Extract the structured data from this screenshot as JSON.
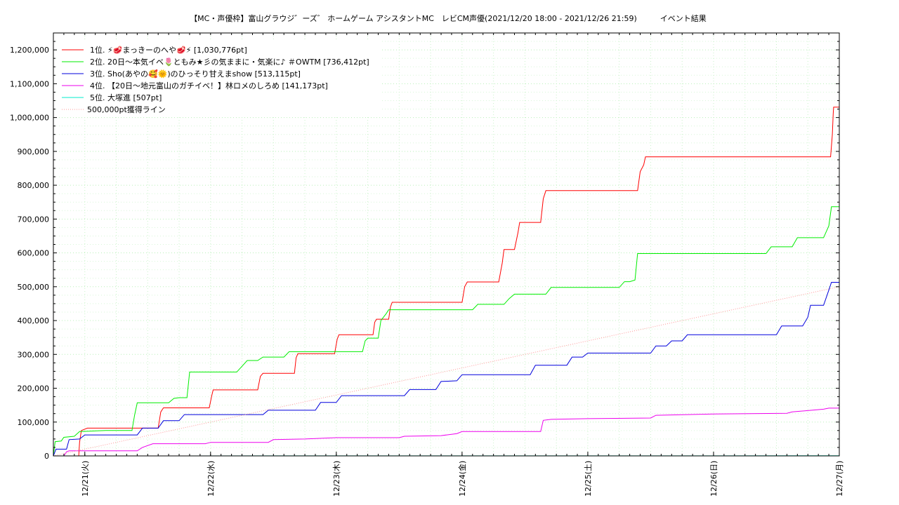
{
  "chart_data": {
    "type": "line",
    "title": "【MC・声優枠】富山グラウジ゛ーズ゛ ホームゲーム アシスタントMC　レビCM声優(2021/12/20 18:00 - 2021/12/26 21:59)　　　イベント結果",
    "xlabel": "",
    "ylabel": "",
    "x_range": [
      "2021-12-20 18:00",
      "2021-12-27 00:00"
    ],
    "ylim": [
      0,
      1250000
    ],
    "y_ticks": [
      0,
      100000,
      200000,
      300000,
      400000,
      500000,
      600000,
      700000,
      800000,
      900000,
      1000000,
      1100000,
      1200000
    ],
    "y_tick_labels": [
      "0",
      "100,000",
      "200,000",
      "300,000",
      "400,000",
      "500,000",
      "600,000",
      "700,000",
      "800,000",
      "900,000",
      "1,000,000",
      "1,100,000",
      "1,200,000"
    ],
    "x_ticks": [
      "2021-12-21 00:00",
      "2021-12-22 00:00",
      "2021-12-23 00:00",
      "2021-12-24 00:00",
      "2021-12-25 00:00",
      "2021-12-26 00:00",
      "2021-12-27 00:00"
    ],
    "x_tick_labels": [
      "12/21(火)",
      "12/22(水)",
      "12/23(木)",
      "12/24(金)",
      "12/25(土)",
      "12/26(日)",
      "12/27(月)"
    ],
    "grid": true,
    "legend_position": "top-left",
    "series": [
      {
        "name": "1位. ⚡🥩まっきーのへや🥩⚡ [1,030,776pt]",
        "color": "#ff0000",
        "style": "solid",
        "points": [
          [
            "2021-12-20 18:00",
            0
          ],
          [
            "2021-12-20 20:30",
            0
          ],
          [
            "2021-12-20 22:50",
            0
          ],
          [
            "2021-12-20 23:00",
            40000
          ],
          [
            "2021-12-20 23:20",
            75000
          ],
          [
            "2021-12-21 00:30",
            82000
          ],
          [
            "2021-12-21 14:00",
            82000
          ],
          [
            "2021-12-21 14:30",
            130000
          ],
          [
            "2021-12-21 15:00",
            142000
          ],
          [
            "2021-12-21 23:45",
            142000
          ],
          [
            "2021-12-22 00:15",
            180000
          ],
          [
            "2021-12-22 00:30",
            195000
          ],
          [
            "2021-12-22 09:00",
            195000
          ],
          [
            "2021-12-22 09:30",
            235000
          ],
          [
            "2021-12-22 10:00",
            244000
          ],
          [
            "2021-12-22 16:00",
            244000
          ],
          [
            "2021-12-22 16:20",
            290000
          ],
          [
            "2021-12-22 16:40",
            302000
          ],
          [
            "2021-12-22 23:40",
            302000
          ],
          [
            "2021-12-23 00:10",
            345000
          ],
          [
            "2021-12-23 00:30",
            358000
          ],
          [
            "2021-12-23 07:00",
            358000
          ],
          [
            "2021-12-23 07:20",
            395000
          ],
          [
            "2021-12-23 07:40",
            404000
          ],
          [
            "2021-12-23 10:00",
            404000
          ],
          [
            "2021-12-23 10:20",
            440000
          ],
          [
            "2021-12-23 10:40",
            454000
          ],
          [
            "2021-12-24 00:00",
            454000
          ],
          [
            "2021-12-24 00:30",
            500000
          ],
          [
            "2021-12-24 01:00",
            514000
          ],
          [
            "2021-12-24 07:00",
            514000
          ],
          [
            "2021-12-24 07:40",
            570000
          ],
          [
            "2021-12-24 08:00",
            610000
          ],
          [
            "2021-12-24 10:00",
            610000
          ],
          [
            "2021-12-24 10:40",
            660000
          ],
          [
            "2021-12-24 11:00",
            690000
          ],
          [
            "2021-12-24 15:00",
            690000
          ],
          [
            "2021-12-24 15:30",
            760000
          ],
          [
            "2021-12-24 16:00",
            784000
          ],
          [
            "2021-12-25 09:30",
            784000
          ],
          [
            "2021-12-25 10:00",
            840000
          ],
          [
            "2021-12-25 10:40",
            860000
          ],
          [
            "2021-12-25 11:00",
            884000
          ],
          [
            "2021-12-26 22:20",
            884000
          ],
          [
            "2021-12-26 22:40",
            950000
          ],
          [
            "2021-12-26 22:50",
            1010000
          ],
          [
            "2021-12-26 22:55",
            1030776
          ],
          [
            "2021-12-27 00:00",
            1030776
          ]
        ]
      },
      {
        "name": "2位. 20日〜本気イベ🌷ともみ★彡の気ままに・気楽に♪ ＃OWTM [736,412pt]",
        "color": "#00ee00",
        "style": "solid",
        "points": [
          [
            "2021-12-20 18:00",
            0
          ],
          [
            "2021-12-20 18:20",
            42000
          ],
          [
            "2021-12-20 19:30",
            44000
          ],
          [
            "2021-12-20 20:00",
            55000
          ],
          [
            "2021-12-20 22:00",
            58000
          ],
          [
            "2021-12-20 23:00",
            72000
          ],
          [
            "2021-12-21 04:00",
            75000
          ],
          [
            "2021-12-21 09:00",
            75000
          ],
          [
            "2021-12-21 09:30",
            120000
          ],
          [
            "2021-12-21 10:00",
            157000
          ],
          [
            "2021-12-21 16:00",
            157000
          ],
          [
            "2021-12-21 17:00",
            170000
          ],
          [
            "2021-12-21 18:00",
            172000
          ],
          [
            "2021-12-21 19:30",
            172000
          ],
          [
            "2021-12-21 20:00",
            248000
          ],
          [
            "2021-12-22 05:00",
            248000
          ],
          [
            "2021-12-22 06:00",
            265000
          ],
          [
            "2021-12-22 07:00",
            282000
          ],
          [
            "2021-12-22 09:00",
            282000
          ],
          [
            "2021-12-22 10:00",
            292000
          ],
          [
            "2021-12-22 14:00",
            292000
          ],
          [
            "2021-12-22 15:00",
            308000
          ],
          [
            "2021-12-23 05:00",
            308000
          ],
          [
            "2021-12-23 05:30",
            340000
          ],
          [
            "2021-12-23 06:00",
            348000
          ],
          [
            "2021-12-23 08:00",
            348000
          ],
          [
            "2021-12-23 08:30",
            400000
          ],
          [
            "2021-12-23 09:00",
            410000
          ],
          [
            "2021-12-23 09:30",
            420000
          ],
          [
            "2021-12-23 10:00",
            432000
          ],
          [
            "2021-12-24 02:00",
            432000
          ],
          [
            "2021-12-24 03:00",
            448000
          ],
          [
            "2021-12-24 08:00",
            448000
          ],
          [
            "2021-12-24 09:00",
            465000
          ],
          [
            "2021-12-24 10:00",
            478000
          ],
          [
            "2021-12-24 16:00",
            478000
          ],
          [
            "2021-12-24 17:00",
            498000
          ],
          [
            "2021-12-25 06:00",
            498000
          ],
          [
            "2021-12-25 07:00",
            515000
          ],
          [
            "2021-12-25 08:00",
            515000
          ],
          [
            "2021-12-25 09:00",
            520000
          ],
          [
            "2021-12-25 09:30",
            598000
          ],
          [
            "2021-12-26 10:00",
            598000
          ],
          [
            "2021-12-26 11:00",
            618000
          ],
          [
            "2021-12-26 15:00",
            618000
          ],
          [
            "2021-12-26 16:00",
            645000
          ],
          [
            "2021-12-26 21:00",
            645000
          ],
          [
            "2021-12-26 22:00",
            680000
          ],
          [
            "2021-12-26 22:30",
            736412
          ],
          [
            "2021-12-27 00:00",
            736412
          ]
        ]
      },
      {
        "name": "3位. Sho(あやの🥰🌞)のひっそり甘えまshow [513,115pt]",
        "color": "#0000dd",
        "style": "solid",
        "points": [
          [
            "2021-12-20 18:00",
            0
          ],
          [
            "2021-12-20 18:30",
            20000
          ],
          [
            "2021-12-20 20:30",
            20000
          ],
          [
            "2021-12-20 21:00",
            48000
          ],
          [
            "2021-12-20 23:00",
            50000
          ],
          [
            "2021-12-21 00:00",
            62000
          ],
          [
            "2021-12-21 10:00",
            62000
          ],
          [
            "2021-12-21 11:00",
            82000
          ],
          [
            "2021-12-21 14:00",
            82000
          ],
          [
            "2021-12-21 15:00",
            104000
          ],
          [
            "2021-12-21 18:00",
            104000
          ],
          [
            "2021-12-21 19:00",
            122000
          ],
          [
            "2021-12-22 10:00",
            122000
          ],
          [
            "2021-12-22 11:00",
            135000
          ],
          [
            "2021-12-22 20:00",
            135000
          ],
          [
            "2021-12-22 21:00",
            158000
          ],
          [
            "2021-12-23 00:00",
            158000
          ],
          [
            "2021-12-23 01:00",
            178000
          ],
          [
            "2021-12-23 13:00",
            178000
          ],
          [
            "2021-12-23 14:00",
            196000
          ],
          [
            "2021-12-23 19:00",
            196000
          ],
          [
            "2021-12-23 20:00",
            220000
          ],
          [
            "2021-12-23 23:00",
            222000
          ],
          [
            "2021-12-24 00:00",
            240000
          ],
          [
            "2021-12-24 13:00",
            240000
          ],
          [
            "2021-12-24 14:00",
            268000
          ],
          [
            "2021-12-24 20:00",
            268000
          ],
          [
            "2021-12-24 21:00",
            292000
          ],
          [
            "2021-12-24 23:00",
            292000
          ],
          [
            "2021-12-25 00:00",
            304000
          ],
          [
            "2021-12-25 12:00",
            304000
          ],
          [
            "2021-12-25 13:00",
            325000
          ],
          [
            "2021-12-25 15:00",
            325000
          ],
          [
            "2021-12-25 16:00",
            340000
          ],
          [
            "2021-12-25 18:00",
            340000
          ],
          [
            "2021-12-25 19:00",
            358000
          ],
          [
            "2021-12-26 12:00",
            358000
          ],
          [
            "2021-12-26 13:00",
            384000
          ],
          [
            "2021-12-26 17:00",
            384000
          ],
          [
            "2021-12-26 18:00",
            410000
          ],
          [
            "2021-12-26 18:30",
            445000
          ],
          [
            "2021-12-26 21:00",
            445000
          ],
          [
            "2021-12-26 22:00",
            490000
          ],
          [
            "2021-12-26 22:30",
            513115
          ],
          [
            "2021-12-27 00:00",
            513115
          ]
        ]
      },
      {
        "name": "4位. 【20日〜地元富山のガチイベ！】林ロメのしろめ [141,173pt]",
        "color": "#ee00ee",
        "style": "solid",
        "points": [
          [
            "2021-12-20 18:00",
            0
          ],
          [
            "2021-12-20 20:00",
            0
          ],
          [
            "2021-12-20 20:30",
            12000
          ],
          [
            "2021-12-20 21:00",
            15000
          ],
          [
            "2021-12-21 10:00",
            15000
          ],
          [
            "2021-12-21 11:00",
            25000
          ],
          [
            "2021-12-21 13:00",
            36000
          ],
          [
            "2021-12-21 23:00",
            36000
          ],
          [
            "2021-12-22 00:00",
            40000
          ],
          [
            "2021-12-22 11:00",
            40000
          ],
          [
            "2021-12-22 12:00",
            48000
          ],
          [
            "2021-12-22 18:00",
            50000
          ],
          [
            "2021-12-23 00:00",
            54000
          ],
          [
            "2021-12-23 12:00",
            54000
          ],
          [
            "2021-12-23 13:00",
            58000
          ],
          [
            "2021-12-23 20:00",
            60000
          ],
          [
            "2021-12-23 23:00",
            66000
          ],
          [
            "2021-12-24 00:00",
            72000
          ],
          [
            "2021-12-24 15:00",
            72000
          ],
          [
            "2021-12-24 15:30",
            105000
          ],
          [
            "2021-12-24 17:00",
            108000
          ],
          [
            "2021-12-25 00:00",
            110000
          ],
          [
            "2021-12-25 12:00",
            112000
          ],
          [
            "2021-12-25 13:00",
            120000
          ],
          [
            "2021-12-26 00:00",
            124000
          ],
          [
            "2021-12-26 14:00",
            126000
          ],
          [
            "2021-12-26 15:00",
            130000
          ],
          [
            "2021-12-26 18:00",
            134000
          ],
          [
            "2021-12-26 21:00",
            138000
          ],
          [
            "2021-12-26 22:00",
            141173
          ],
          [
            "2021-12-27 00:00",
            141173
          ]
        ]
      },
      {
        "name": "5位. 大塚進 [507pt]",
        "color": "#00eecc",
        "style": "solid",
        "points": [
          [
            "2021-12-20 18:00",
            0
          ],
          [
            "2021-12-22 12:00",
            200
          ],
          [
            "2021-12-27 00:00",
            507
          ]
        ]
      },
      {
        "name": "500,000pt獲得ライン",
        "color": "#ff9999",
        "style": "dotted",
        "points": [
          [
            "2021-12-20 18:00",
            0
          ],
          [
            "2021-12-27 00:00",
            500000
          ]
        ]
      }
    ]
  }
}
